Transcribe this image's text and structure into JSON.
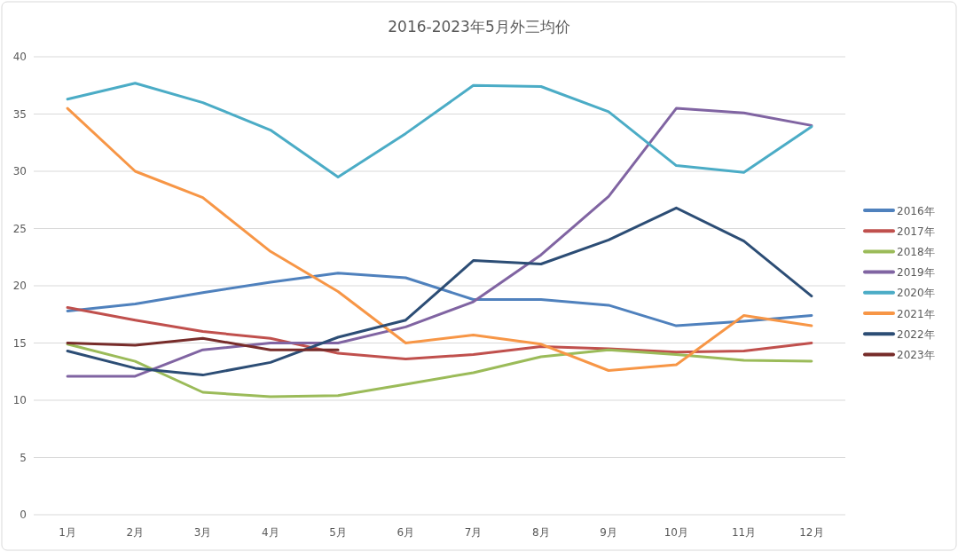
{
  "chart_data": {
    "type": "line",
    "title": "2016-2023年5月外三均价",
    "categories": [
      "1月",
      "2月",
      "3月",
      "4月",
      "5月",
      "6月",
      "7月",
      "8月",
      "9月",
      "10月",
      "11月",
      "12月"
    ],
    "ylim": [
      0,
      40
    ],
    "yticks": [
      0,
      5,
      10,
      15,
      20,
      25,
      30,
      35,
      40
    ],
    "grid": "y",
    "legend": "right",
    "marker": "none",
    "series": [
      {
        "name": "2016年",
        "color": "#4f81bd",
        "values": [
          17.8,
          18.4,
          19.4,
          20.3,
          21.1,
          20.7,
          18.8,
          18.8,
          18.3,
          16.5,
          16.9,
          17.4
        ]
      },
      {
        "name": "2017年",
        "color": "#c0504d",
        "values": [
          18.1,
          17.0,
          16.0,
          15.4,
          14.1,
          13.6,
          14.0,
          14.7,
          14.5,
          14.2,
          14.3,
          15.0
        ]
      },
      {
        "name": "2018年",
        "color": "#9bbb59",
        "values": [
          14.9,
          13.4,
          10.7,
          10.3,
          10.4,
          11.4,
          12.4,
          13.8,
          14.4,
          14.0,
          13.5,
          13.4
        ]
      },
      {
        "name": "2019年",
        "color": "#8064a2",
        "values": [
          12.1,
          12.1,
          14.4,
          15.0,
          15.0,
          16.4,
          18.6,
          22.7,
          27.8,
          35.5,
          35.1,
          34.0
        ]
      },
      {
        "name": "2020年",
        "color": "#4bacc6",
        "values": [
          36.3,
          37.7,
          36.0,
          33.6,
          29.5,
          33.3,
          37.5,
          37.4,
          35.2,
          30.5,
          29.9,
          33.9
        ]
      },
      {
        "name": "2021年",
        "color": "#f79646",
        "values": [
          35.5,
          30.0,
          27.7,
          23.0,
          19.5,
          15.0,
          15.7,
          14.9,
          12.6,
          13.1,
          17.4,
          16.5
        ]
      },
      {
        "name": "2022年",
        "color": "#2c4d75",
        "values": [
          14.3,
          12.8,
          12.2,
          13.3,
          15.5,
          17.0,
          22.2,
          21.9,
          24.0,
          26.8,
          23.9,
          19.1
        ]
      },
      {
        "name": "2023年",
        "color": "#772c2a",
        "values": [
          15.0,
          14.8,
          15.4,
          14.4,
          14.4,
          null,
          null,
          null,
          null,
          null,
          null,
          null
        ]
      }
    ]
  }
}
